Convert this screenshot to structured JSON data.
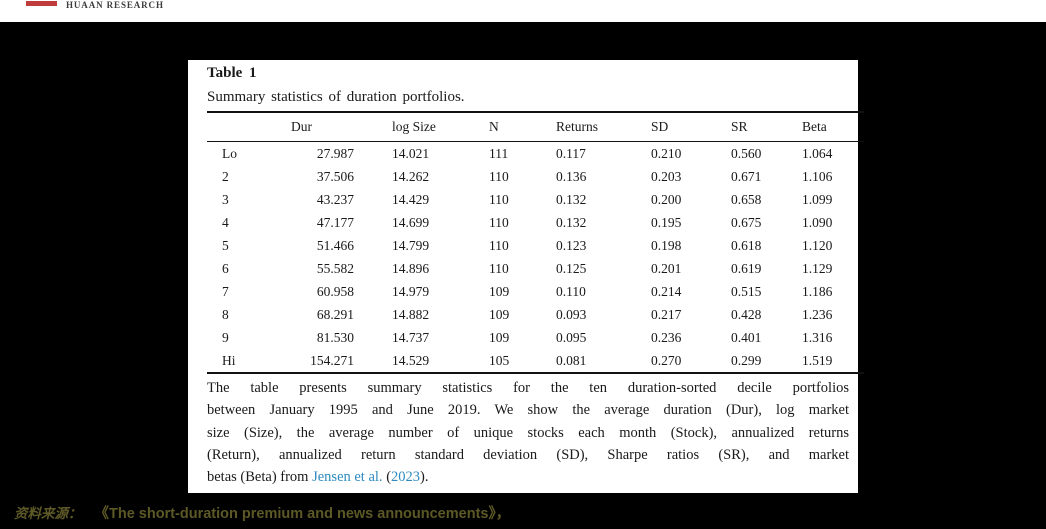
{
  "header": {
    "brand": "HUAAN RESEARCH"
  },
  "colors": {
    "page_bg": "#000000",
    "panel_bg": "#ffffff",
    "accent_red": "#c03c3c",
    "link_blue": "#2e8bc0",
    "source_olive": "#5d5927"
  },
  "table": {
    "title": "Table 1",
    "subtitle": "Summary statistics of duration portfolios.",
    "columns": [
      "Dur",
      "log Size",
      "N",
      "Returns",
      "SD",
      "SR",
      "Beta"
    ],
    "rows": [
      {
        "label": "Lo",
        "cells": [
          "27.987",
          "14.021",
          "111",
          "0.117",
          "0.210",
          "0.560",
          "1.064"
        ]
      },
      {
        "label": "2",
        "cells": [
          "37.506",
          "14.262",
          "110",
          "0.136",
          "0.203",
          "0.671",
          "1.106"
        ]
      },
      {
        "label": "3",
        "cells": [
          "43.237",
          "14.429",
          "110",
          "0.132",
          "0.200",
          "0.658",
          "1.099"
        ]
      },
      {
        "label": "4",
        "cells": [
          "47.177",
          "14.699",
          "110",
          "0.132",
          "0.195",
          "0.675",
          "1.090"
        ]
      },
      {
        "label": "5",
        "cells": [
          "51.466",
          "14.799",
          "110",
          "0.123",
          "0.198",
          "0.618",
          "1.120"
        ]
      },
      {
        "label": "6",
        "cells": [
          "55.582",
          "14.896",
          "110",
          "0.125",
          "0.201",
          "0.619",
          "1.129"
        ]
      },
      {
        "label": "7",
        "cells": [
          "60.958",
          "14.979",
          "109",
          "0.110",
          "0.214",
          "0.515",
          "1.186"
        ]
      },
      {
        "label": "8",
        "cells": [
          "68.291",
          "14.882",
          "109",
          "0.093",
          "0.217",
          "0.428",
          "1.236"
        ]
      },
      {
        "label": "9",
        "cells": [
          "81.530",
          "14.737",
          "109",
          "0.095",
          "0.236",
          "0.401",
          "1.316"
        ]
      },
      {
        "label": "Hi",
        "cells": [
          "154.271",
          "14.529",
          "105",
          "0.081",
          "0.270",
          "0.299",
          "1.519"
        ]
      }
    ]
  },
  "footnote": {
    "line1": "The table presents summary statistics for the ten duration-sorted decile portfolios",
    "line2": "between January 1995 and June 2019. We show the average duration (Dur), log market",
    "line3": "size (Size), the average number of unique stocks each month (Stock), annualized returns",
    "line4": "(Return), annualized return standard deviation (SD), Sharpe ratios (SR), and market",
    "line5_before": "betas (Beta) from ",
    "line5_link1": "Jensen et al.",
    "line5_mid": " (",
    "line5_link2": "2023",
    "line5_after": ")."
  },
  "source": {
    "label": "资料来源：",
    "title": "《The short-duration premium and news announcements》，"
  }
}
